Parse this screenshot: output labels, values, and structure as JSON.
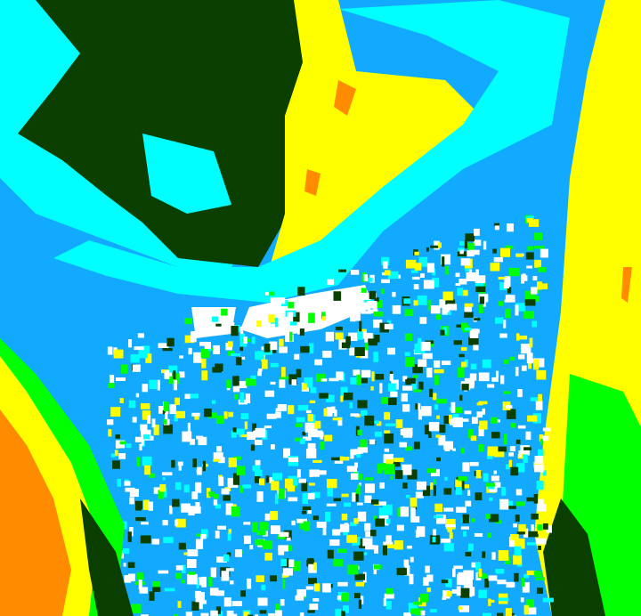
{
  "map": {
    "type": "classified-raster",
    "palette": {
      "dark_green": "#0b3f00",
      "cyan": "#00ffff",
      "light_blue": "#12aaff",
      "yellow": "#ffff00",
      "green": "#00ff00",
      "orange": "#ff8c00",
      "white": "#ffffff"
    }
  }
}
